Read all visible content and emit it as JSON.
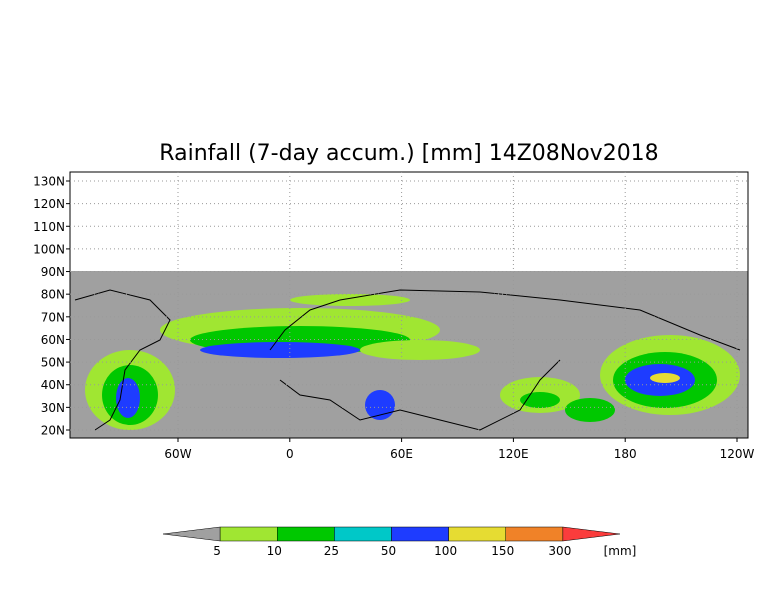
{
  "title": "Rainfall (7-day accum.) [mm] 14Z08Nov2018",
  "lat_labels": [
    "130N",
    "120N",
    "110N",
    "100N",
    "90N",
    "80N",
    "70N",
    "60N",
    "50N",
    "40N",
    "30N",
    "20N"
  ],
  "lon_labels": [
    "60W",
    "0",
    "60E",
    "120E",
    "180",
    "120W"
  ],
  "colorbar": {
    "labels": [
      "5",
      "10",
      "25",
      "50",
      "100",
      "150",
      "300"
    ],
    "colors": [
      "#a0a0a0",
      "#a0e632",
      "#00c800",
      "#00c8c8",
      "#1e3cff",
      "#e6dc32",
      "#f08228",
      "#fa3c3c"
    ],
    "unit": "[mm]"
  }
}
